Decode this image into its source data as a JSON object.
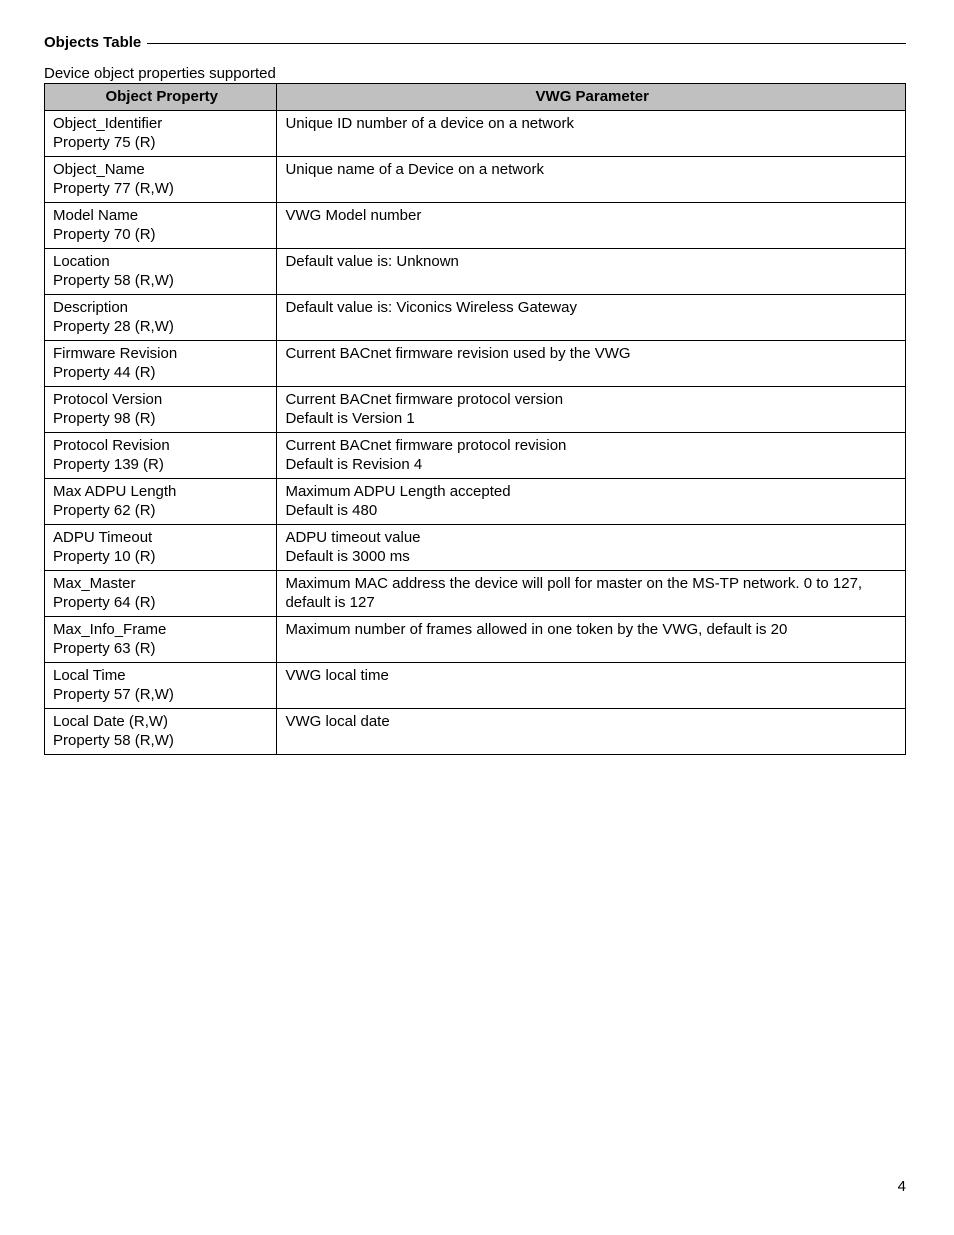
{
  "section_title": "Objects Table",
  "table_caption": "Device object properties supported",
  "columns": [
    "Object Property",
    "VWG Parameter"
  ],
  "rows": [
    {
      "prop_lines": [
        "Object_Identifier",
        "Property 75 (R)"
      ],
      "param_lines": [
        "Unique ID number of a device on a network"
      ]
    },
    {
      "prop_lines": [
        "Object_Name",
        "Property 77 (R,W)"
      ],
      "param_lines": [
        "Unique name of a Device on a network"
      ]
    },
    {
      "prop_lines": [
        "Model Name",
        "Property 70 (R)"
      ],
      "param_lines": [
        "VWG Model number"
      ]
    },
    {
      "prop_lines": [
        "Location",
        "Property 58 (R,W)"
      ],
      "param_lines": [
        "Default value is: Unknown"
      ]
    },
    {
      "prop_lines": [
        "Description",
        "Property 28 (R,W)"
      ],
      "param_lines": [
        "Default value is: Viconics Wireless Gateway"
      ]
    },
    {
      "prop_lines": [
        "Firmware Revision",
        "Property 44 (R)"
      ],
      "param_lines": [
        "Current BACnet firmware revision used by the VWG"
      ]
    },
    {
      "prop_lines": [
        "Protocol Version",
        "Property 98 (R)"
      ],
      "param_lines": [
        "Current BACnet firmware protocol version",
        "Default is Version 1"
      ]
    },
    {
      "prop_lines": [
        "Protocol Revision",
        "Property 139 (R)"
      ],
      "param_lines": [
        "Current BACnet firmware protocol revision",
        "Default is Revision 4"
      ]
    },
    {
      "prop_lines": [
        "Max ADPU Length",
        "Property 62 (R)"
      ],
      "param_lines": [
        "Maximum ADPU Length accepted",
        "Default is 480"
      ]
    },
    {
      "prop_lines": [
        "ADPU Timeout",
        "Property 10 (R)"
      ],
      "param_lines": [
        "ADPU timeout value",
        "Default is 3000 ms"
      ]
    },
    {
      "prop_lines": [
        "Max_Master",
        "Property 64 (R)"
      ],
      "param_lines": [
        "Maximum MAC address the device will poll for master on the MS-TP network. 0 to 127, default is 127"
      ]
    },
    {
      "prop_lines": [
        "Max_Info_Frame",
        "Property 63 (R)"
      ],
      "param_lines": [
        "Maximum number of frames allowed in one token by the VWG, default is 20"
      ]
    },
    {
      "prop_lines": [
        "Local Time",
        "Property 57 (R,W)"
      ],
      "param_lines": [
        "VWG local time"
      ]
    },
    {
      "prop_lines": [
        "Local Date (R,W)",
        "Property 58 (R,W)"
      ],
      "param_lines": [
        "VWG local date"
      ]
    }
  ],
  "page_number": "4"
}
